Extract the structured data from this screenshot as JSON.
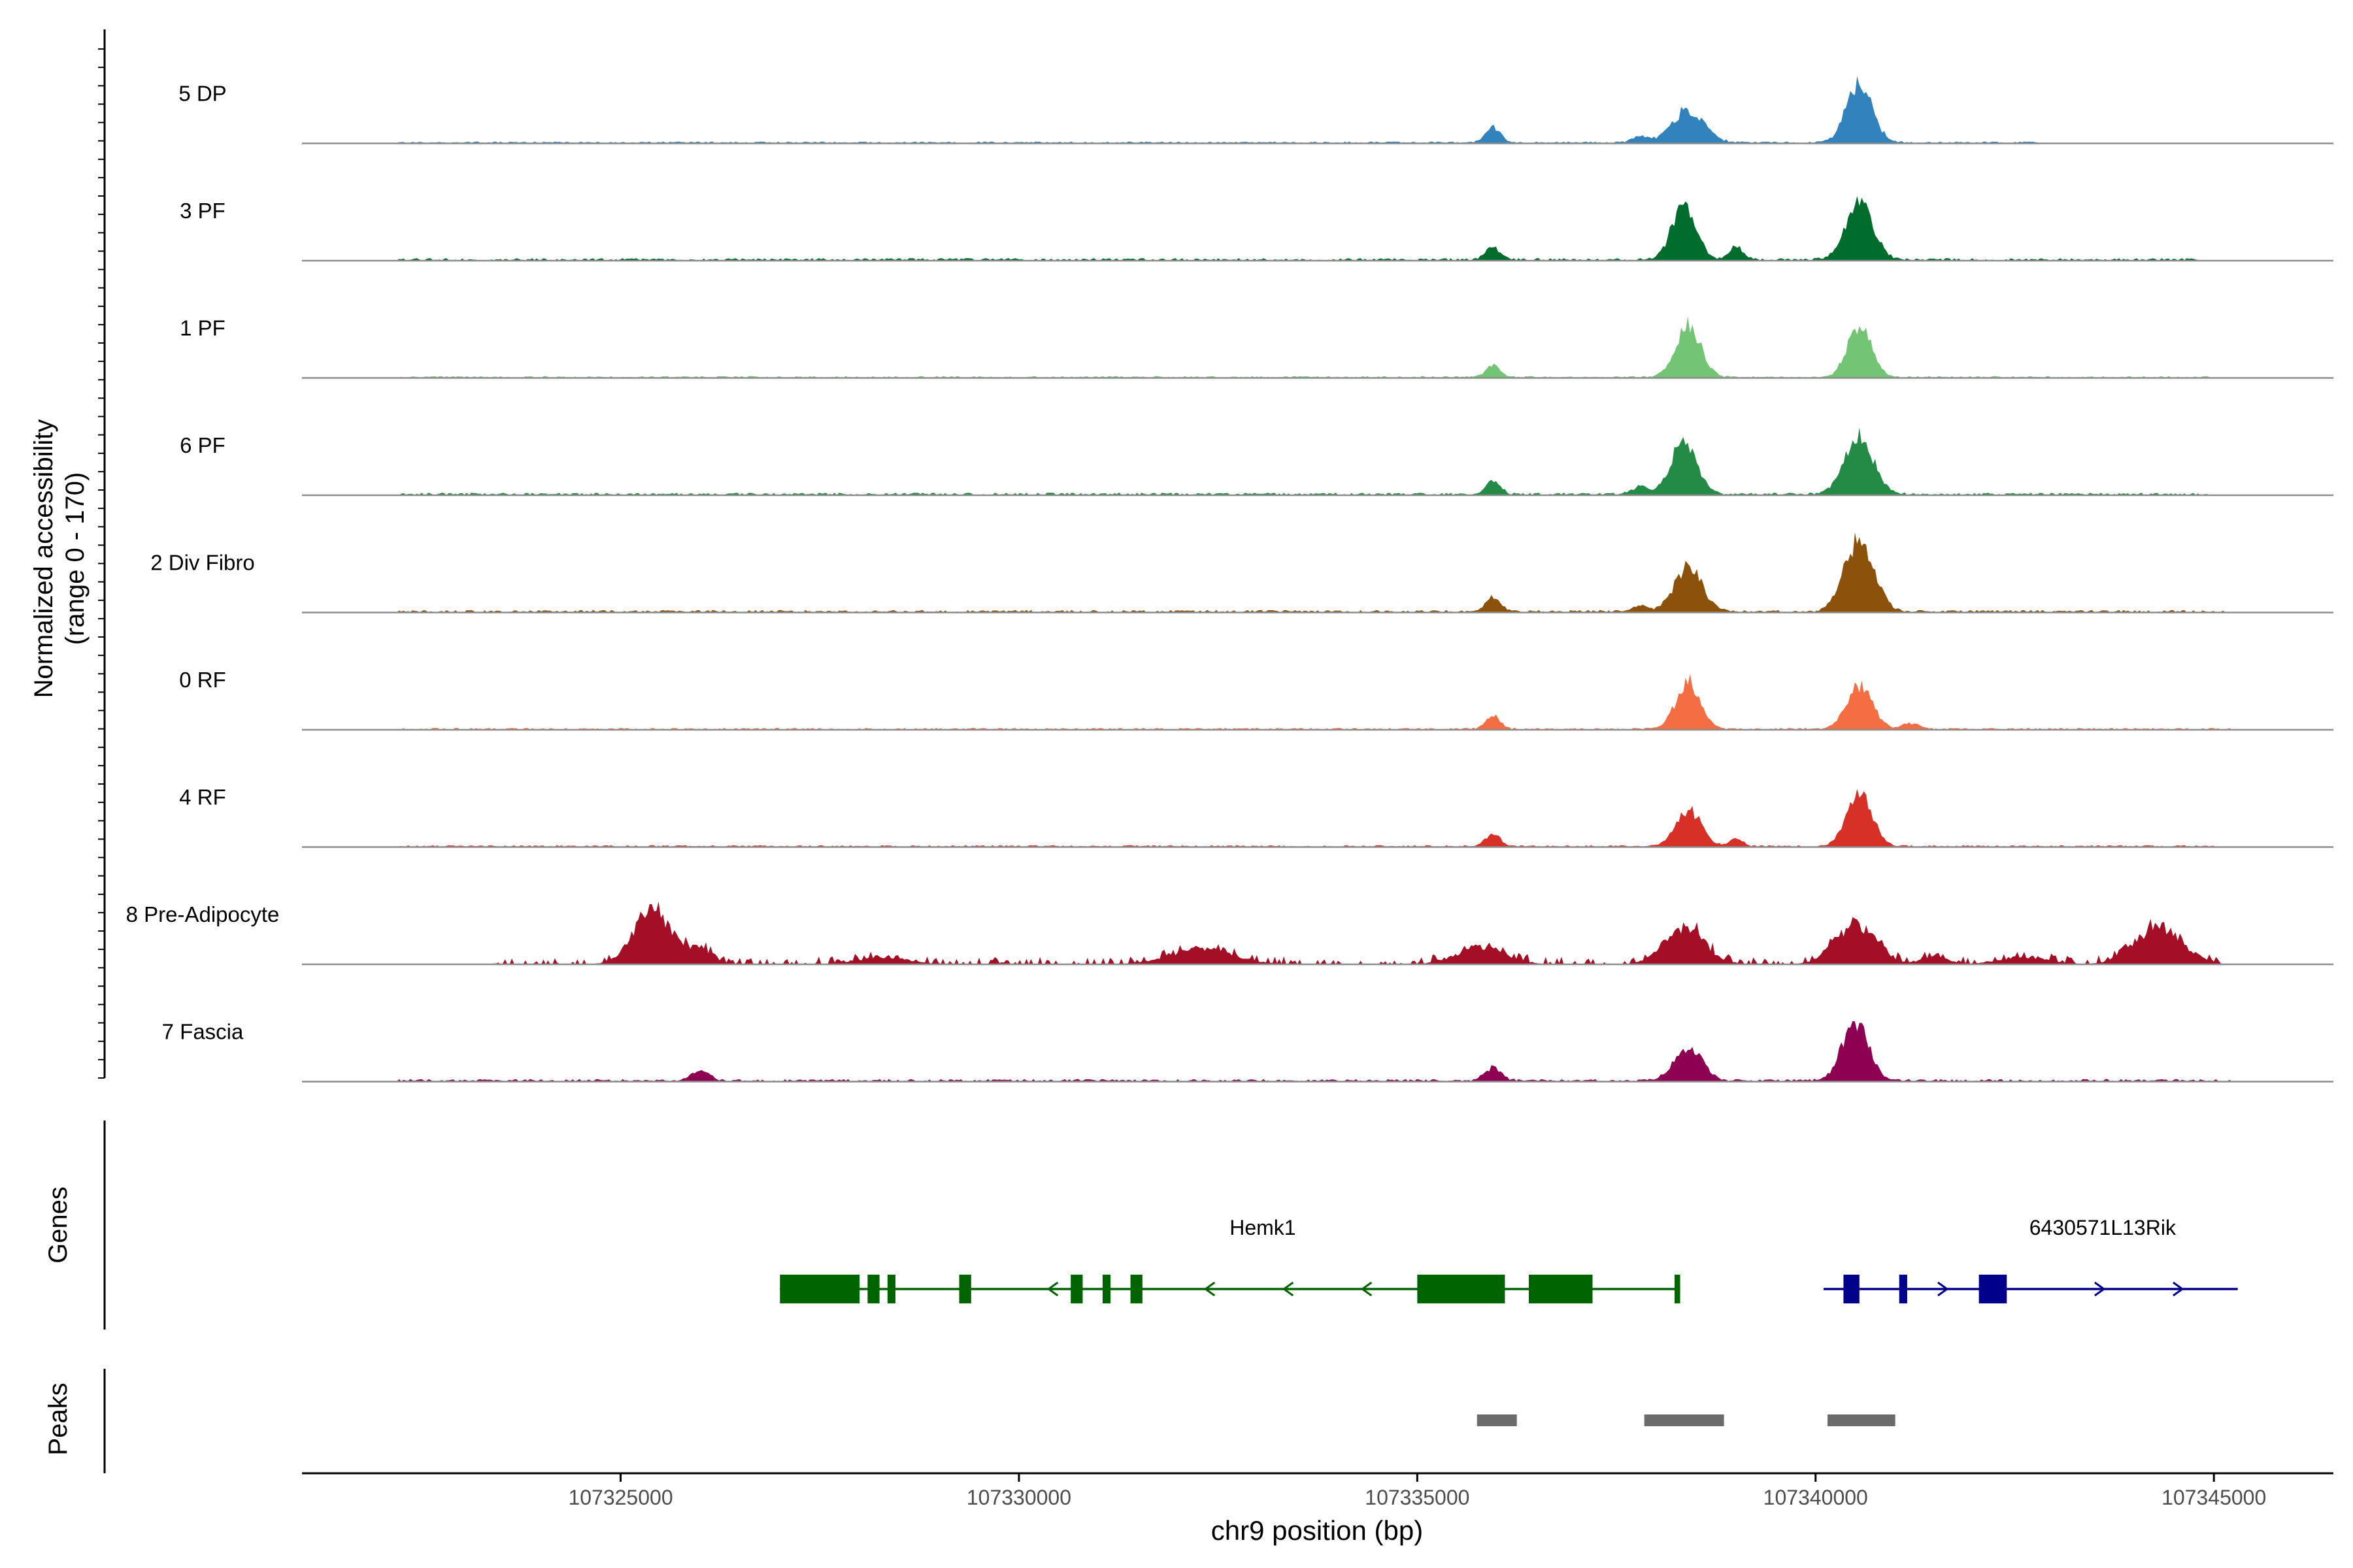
{
  "chart_data": {
    "type": "area",
    "xlabel": "chr9 position (bp)",
    "ylabel": "Normalized accessibility",
    "ylabel_range": "(range 0 - 170)",
    "y_range": [
      0,
      170
    ],
    "x_range": [
      107321000,
      107346500
    ],
    "x_ticks": [
      107325000,
      107330000,
      107335000,
      107340000,
      107345000
    ],
    "x_tick_labels": [
      "107325000",
      "107330000",
      "107335000",
      "107340000",
      "107345000"
    ],
    "grid": false,
    "legend": "none",
    "tracks": [
      {
        "name": "5 DP",
        "color": "#3182bd",
        "peaks": [
          [
            107335950,
            25,
            90
          ],
          [
            107338400,
            55,
            200
          ],
          [
            107340550,
            100,
            160
          ],
          [
            107337800,
            10,
            100
          ]
        ],
        "noise": 3,
        "start": 107322200,
        "end": 107342800
      },
      {
        "name": "3 PF",
        "color": "#006d2c",
        "peaks": [
          [
            107335950,
            22,
            90
          ],
          [
            107338350,
            90,
            150
          ],
          [
            107339000,
            22,
            90
          ],
          [
            107340550,
            95,
            170
          ]
        ],
        "noise": 4,
        "start": 107322200,
        "end": 107344900
      },
      {
        "name": "1 PF",
        "color": "#74c476",
        "peaks": [
          [
            107335950,
            20,
            90
          ],
          [
            107338400,
            85,
            160
          ],
          [
            107340550,
            85,
            150
          ]
        ],
        "noise": 3,
        "start": 107322200,
        "end": 107345000
      },
      {
        "name": "6 PF",
        "color": "#238b45",
        "peaks": [
          [
            107335950,
            22,
            90
          ],
          [
            107338350,
            90,
            160
          ],
          [
            107340550,
            95,
            180
          ],
          [
            107337800,
            12,
            100
          ]
        ],
        "noise": 4,
        "start": 107322200,
        "end": 107345000
      },
      {
        "name": "2 Div Fibro",
        "color": "#8c510a",
        "peaks": [
          [
            107335950,
            25,
            90
          ],
          [
            107338400,
            75,
            170
          ],
          [
            107340550,
            120,
            180
          ],
          [
            107337800,
            10,
            100
          ]
        ],
        "noise": 4,
        "start": 107322200,
        "end": 107345200
      },
      {
        "name": "0 RF",
        "color": "#f46d43",
        "peaks": [
          [
            107335950,
            22,
            90
          ],
          [
            107338400,
            78,
            150
          ],
          [
            107340550,
            72,
            160
          ],
          [
            107341200,
            10,
            100
          ]
        ],
        "noise": 3,
        "start": 107322200,
        "end": 107345200
      },
      {
        "name": "4 RF",
        "color": "#d73027",
        "peaks": [
          [
            107335950,
            22,
            90
          ],
          [
            107338400,
            60,
            160
          ],
          [
            107340550,
            85,
            160
          ],
          [
            107339000,
            12,
            90
          ]
        ],
        "noise": 3,
        "start": 107322200,
        "end": 107345000
      },
      {
        "name": "8 Pre-Adipocyte",
        "color": "#a50f26",
        "peaks": [
          [
            107325400,
            90,
            240
          ],
          [
            107326000,
            25,
            150
          ],
          [
            107328300,
            12,
            300
          ],
          [
            107332300,
            25,
            400
          ],
          [
            107335800,
            28,
            300
          ],
          [
            107338350,
            60,
            250
          ],
          [
            107340500,
            65,
            260
          ],
          [
            107342600,
            12,
            300
          ],
          [
            107344300,
            60,
            300
          ],
          [
            107341500,
            15,
            150
          ]
        ],
        "noise": 5,
        "start": 107323400,
        "end": 107345100,
        "sparse": true
      },
      {
        "name": "7 Fascia",
        "color": "#8e0152",
        "peaks": [
          [
            107326000,
            15,
            120
          ],
          [
            107335950,
            22,
            100
          ],
          [
            107338400,
            55,
            170
          ],
          [
            107340500,
            100,
            160
          ]
        ],
        "noise": 4,
        "start": 107322200,
        "end": 107345200
      }
    ],
    "genes_track": {
      "label": "Genes",
      "genes": [
        {
          "name": "Hemk1",
          "strand": "-",
          "color": "#006400",
          "start": 107327000,
          "end": 107338300,
          "exons": [
            [
              107327000,
              107328000,
              "thick"
            ],
            [
              107328100,
              107328250,
              "thick"
            ],
            [
              107328350,
              107328450,
              "thick"
            ],
            [
              107329250,
              107329400,
              "thick"
            ],
            [
              107330650,
              107330800,
              "thick"
            ],
            [
              107331050,
              107331150,
              "thick"
            ],
            [
              107331400,
              107331550,
              "thick"
            ],
            [
              107335000,
              107336100,
              "thick"
            ],
            [
              107336400,
              107337200,
              "thick"
            ],
            [
              107338230,
              107338300,
              "thick"
            ]
          ]
        },
        {
          "name": "6430571L13Rik",
          "strand": "+",
          "color": "#00008b",
          "start": 107340100,
          "end": 107345300,
          "exons": [
            [
              107340350,
              107340550,
              "thick"
            ],
            [
              107341050,
              107341150,
              "thick"
            ],
            [
              107342050,
              107342400,
              "thick"
            ]
          ]
        }
      ]
    },
    "peaks_track": {
      "label": "Peaks",
      "color": "#6b6b6b",
      "regions": [
        [
          107335750,
          107336250
        ],
        [
          107337850,
          107338850
        ],
        [
          107340150,
          107341000
        ]
      ]
    }
  }
}
